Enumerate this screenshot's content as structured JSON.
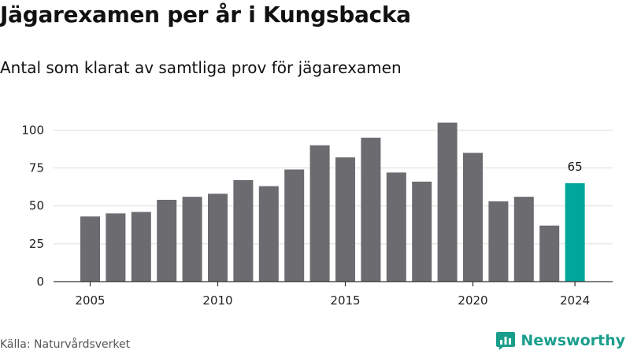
{
  "header": {
    "title": "Jägarexamen per år i Kungsbacka",
    "subtitle": "Antal som klarat av samtliga prov för jägarexamen"
  },
  "footer": {
    "source": "Källa: Naturvårdsverket",
    "brand": "Newsworthy",
    "brand_icon": "newsworthy-logo-icon"
  },
  "colors": {
    "bar": "#6b6b70",
    "highlight": "#00a69a",
    "grid": "#dddddd",
    "axis": "#333333",
    "brand": "#1a9e8c"
  },
  "chart_data": {
    "type": "bar",
    "categories": [
      "2005",
      "2006",
      "2007",
      "2008",
      "2009",
      "2010",
      "2011",
      "2012",
      "2013",
      "2014",
      "2015",
      "2016",
      "2017",
      "2018",
      "2019",
      "2020",
      "2021",
      "2022",
      "2023",
      "2024"
    ],
    "values": [
      43,
      45,
      46,
      54,
      56,
      58,
      67,
      63,
      74,
      90,
      82,
      95,
      72,
      66,
      105,
      85,
      53,
      56,
      37,
      65
    ],
    "highlight_category": "2024",
    "data_labels": [
      {
        "category": "2024",
        "text": "65"
      }
    ],
    "x_tick_labels": [
      "2005",
      "2010",
      "2015",
      "2020",
      "2024"
    ],
    "y_ticks": [
      0,
      25,
      50,
      75,
      100
    ],
    "ylim": [
      0,
      108
    ],
    "grid": "horizontal",
    "xlabel": "",
    "ylabel": ""
  }
}
